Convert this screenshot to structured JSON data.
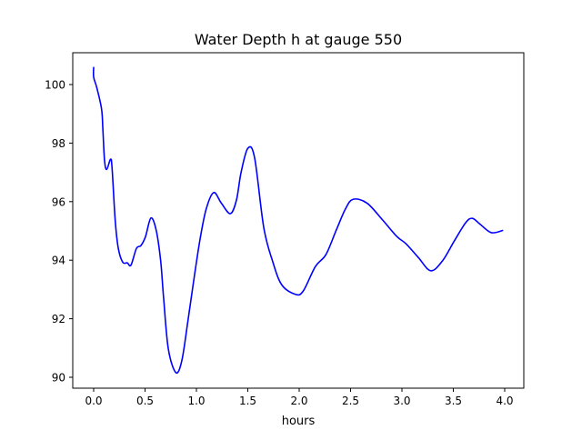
{
  "chart_data": {
    "type": "line",
    "title": "Water Depth h at gauge 550",
    "xlabel": "hours",
    "ylabel": "",
    "xlim": [
      -0.2,
      4.2
    ],
    "ylim": [
      89.6,
      101.1
    ],
    "xticks": [
      0.0,
      0.5,
      1.0,
      1.5,
      2.0,
      2.5,
      3.0,
      3.5,
      4.0
    ],
    "xtick_labels": [
      "0.0",
      "0.5",
      "1.0",
      "1.5",
      "2.0",
      "2.5",
      "3.0",
      "3.5",
      "4.0"
    ],
    "yticks": [
      90,
      92,
      94,
      96,
      98,
      100
    ],
    "ytick_labels": [
      "90",
      "92",
      "94",
      "96",
      "98",
      "100"
    ],
    "grid": false,
    "series": [
      {
        "name": "h",
        "color": "#0000ff",
        "x": [
          0.0,
          0.0,
          0.03,
          0.077,
          0.09,
          0.106,
          0.127,
          0.165,
          0.18,
          0.21,
          0.24,
          0.283,
          0.327,
          0.363,
          0.416,
          0.46,
          0.504,
          0.557,
          0.608,
          0.652,
          0.68,
          0.726,
          0.8,
          0.858,
          0.917,
          0.976,
          1.035,
          1.095,
          1.168,
          1.242,
          1.33,
          1.39,
          1.434,
          1.5,
          1.566,
          1.655,
          1.74,
          1.83,
          1.965,
          2.04,
          2.157,
          2.26,
          2.36,
          2.45,
          2.525,
          2.66,
          2.81,
          2.95,
          3.04,
          3.16,
          3.28,
          3.395,
          3.51,
          3.62,
          3.685,
          3.76,
          3.87,
          3.985
        ],
        "y": [
          100.6,
          100.25,
          99.9,
          99.16,
          98.44,
          97.4,
          97.1,
          97.45,
          97.1,
          95.34,
          94.4,
          93.93,
          93.91,
          93.83,
          94.4,
          94.5,
          94.8,
          95.44,
          95.03,
          93.98,
          92.74,
          90.98,
          90.16,
          90.57,
          91.92,
          93.36,
          94.71,
          95.75,
          96.31,
          95.95,
          95.59,
          96.06,
          96.99,
          97.82,
          97.5,
          95.12,
          93.98,
          93.16,
          92.83,
          92.95,
          93.78,
          94.19,
          95.02,
          95.75,
          96.08,
          95.95,
          95.38,
          94.81,
          94.56,
          94.09,
          93.64,
          93.98,
          94.66,
          95.28,
          95.43,
          95.23,
          94.94,
          95.02
        ]
      }
    ]
  }
}
